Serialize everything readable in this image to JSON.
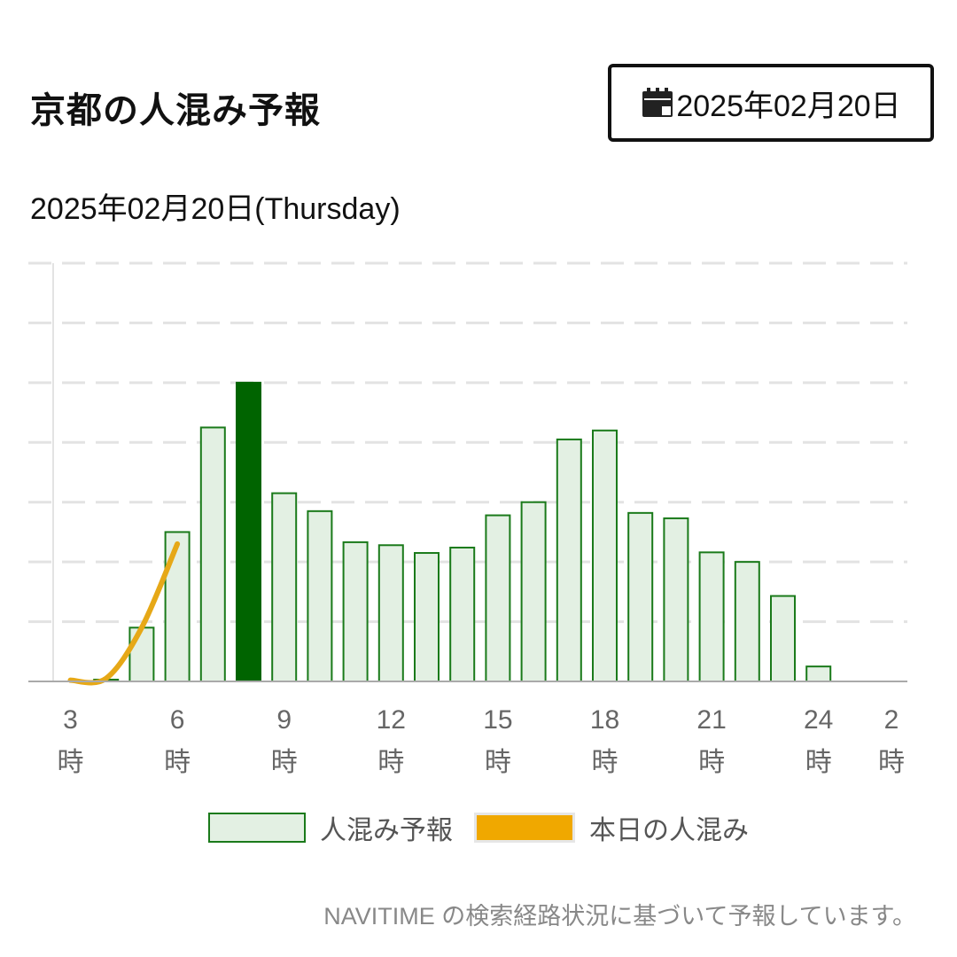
{
  "header": {
    "title": "京都の人混み予報",
    "date_button_label": "2025年02月20日"
  },
  "date_heading": "2025年02月20日(Thursday)",
  "legend": {
    "forecast_label": "人混み予報",
    "today_label": "本日の人混み"
  },
  "footnote": "NAVITIME の検索経路状況に基づいて予報しています。",
  "colors": {
    "forecast_fill": "#e3f0e3",
    "forecast_border": "#1a7a1a",
    "highlight": "#006400",
    "today_line": "#e6a817"
  },
  "chart_data": {
    "type": "bar",
    "title": "",
    "xlabel": "",
    "ylabel": "",
    "ylim": [
      0,
      7
    ],
    "grid": true,
    "legend_position": "bottom",
    "categories": [
      "3",
      "4",
      "5",
      "6",
      "7",
      "8",
      "9",
      "10",
      "11",
      "12",
      "13",
      "14",
      "15",
      "16",
      "17",
      "18",
      "19",
      "20",
      "21",
      "22",
      "23",
      "24",
      "1",
      "2"
    ],
    "tick_labels": [
      {
        "hour": "3",
        "value": "3",
        "unit": "時"
      },
      {
        "hour": "6",
        "value": "6",
        "unit": "時"
      },
      {
        "hour": "9",
        "value": "9",
        "unit": "時"
      },
      {
        "hour": "12",
        "value": "12",
        "unit": "時"
      },
      {
        "hour": "15",
        "value": "15",
        "unit": "時"
      },
      {
        "hour": "18",
        "value": "18",
        "unit": "時"
      },
      {
        "hour": "21",
        "value": "21",
        "unit": "時"
      },
      {
        "hour": "24",
        "value": "24",
        "unit": "時"
      },
      {
        "hour": "2",
        "value": "2",
        "unit": "時"
      }
    ],
    "highlight_category": "8",
    "series": [
      {
        "name": "人混み予報",
        "type": "bar",
        "values": [
          0,
          0.03,
          0.9,
          2.5,
          4.25,
          5.0,
          3.15,
          2.85,
          2.33,
          2.28,
          2.15,
          2.24,
          2.78,
          3.0,
          4.05,
          4.2,
          2.82,
          2.73,
          2.16,
          2.0,
          1.43,
          0.25,
          0,
          0
        ]
      },
      {
        "name": "本日の人混み",
        "type": "line",
        "x": [
          "3",
          "4",
          "5",
          "6"
        ],
        "values": [
          0.02,
          0.05,
          0.9,
          2.3
        ]
      }
    ]
  }
}
